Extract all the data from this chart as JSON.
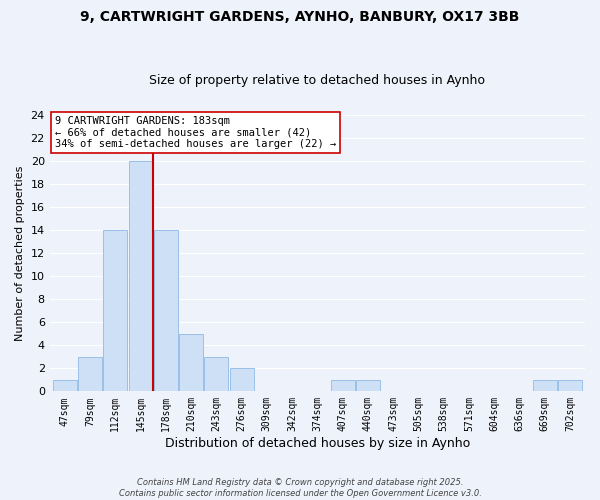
{
  "title_line1": "9, CARTWRIGHT GARDENS, AYNHO, BANBURY, OX17 3BB",
  "title_line2": "Size of property relative to detached houses in Aynho",
  "xlabel": "Distribution of detached houses by size in Aynho",
  "ylabel": "Number of detached properties",
  "bar_labels": [
    "47sqm",
    "79sqm",
    "112sqm",
    "145sqm",
    "178sqm",
    "210sqm",
    "243sqm",
    "276sqm",
    "309sqm",
    "342sqm",
    "374sqm",
    "407sqm",
    "440sqm",
    "473sqm",
    "505sqm",
    "538sqm",
    "571sqm",
    "604sqm",
    "636sqm",
    "669sqm",
    "702sqm"
  ],
  "bar_values": [
    1,
    3,
    14,
    20,
    14,
    5,
    3,
    2,
    0,
    0,
    0,
    1,
    1,
    0,
    0,
    0,
    0,
    0,
    0,
    1,
    1
  ],
  "bar_color": "#cde0f5",
  "bar_edge_color": "#99c0e8",
  "vline_x": 3.5,
  "vline_color": "#cc0000",
  "annotation_text": "9 CARTWRIGHT GARDENS: 183sqm\n← 66% of detached houses are smaller (42)\n34% of semi-detached houses are larger (22) →",
  "annotation_box_facecolor": "#ffffff",
  "annotation_box_edge": "#cc0000",
  "ylim": [
    0,
    24
  ],
  "yticks": [
    0,
    2,
    4,
    6,
    8,
    10,
    12,
    14,
    16,
    18,
    20,
    22,
    24
  ],
  "footer_text": "Contains HM Land Registry data © Crown copyright and database right 2025.\nContains public sector information licensed under the Open Government Licence v3.0.",
  "background_color": "#eef2fb",
  "grid_color": "#ffffff",
  "title_fontsize": 10,
  "subtitle_fontsize": 9
}
